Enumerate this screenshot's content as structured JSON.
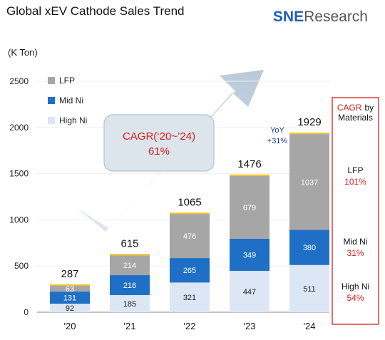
{
  "header": {
    "title": "Global xEV Cathode Sales Trend",
    "logo_sne": "SNE",
    "logo_research": "Research",
    "unit": "(K Ton)"
  },
  "chart_data": {
    "type": "bar",
    "stacked": true,
    "title": "Global xEV Cathode Sales Trend",
    "ylabel": "(K Ton)",
    "ylim": [
      0,
      2500
    ],
    "yticks": [
      "0",
      "500",
      "1000",
      "1500",
      "2000",
      "2500"
    ],
    "categories": [
      "'20",
      "'21",
      "'22",
      "'23",
      "'24"
    ],
    "series": [
      {
        "name": "High Ni",
        "values": [
          92,
          185,
          321,
          447,
          511
        ],
        "color": "#dce6f5"
      },
      {
        "name": "Mid Ni",
        "values": [
          131,
          216,
          265,
          349,
          380
        ],
        "color": "#1f6fc6"
      },
      {
        "name": "LFP",
        "values": [
          63,
          214,
          476,
          679,
          1037
        ],
        "color": "#a6a6a6"
      }
    ],
    "totals": [
      "287",
      "615",
      "1065",
      "1476",
      "1929"
    ],
    "segment_labels": [
      [
        "92",
        "131",
        "63"
      ],
      [
        "185",
        "216",
        "214"
      ],
      [
        "321",
        "265",
        "476"
      ],
      [
        "447",
        "349",
        "679"
      ],
      [
        "511",
        "380",
        "1037"
      ]
    ],
    "other_color": "#f0c020",
    "legend_position": "top-left",
    "annotations": {
      "cagr_box_title": "CAGR(‘20~’24)",
      "cagr_box_value": "61%",
      "yoy_label": "YoY",
      "yoy_value": "+31%"
    },
    "cagr_panel": {
      "title_red": "CAGR",
      "title_rest": "by",
      "title_line2": "Materials",
      "items": [
        {
          "name": "LFP",
          "value": "101%"
        },
        {
          "name": "Mid Ni",
          "value": "31%"
        },
        {
          "name": "High Ni",
          "value": "54%"
        }
      ]
    }
  }
}
